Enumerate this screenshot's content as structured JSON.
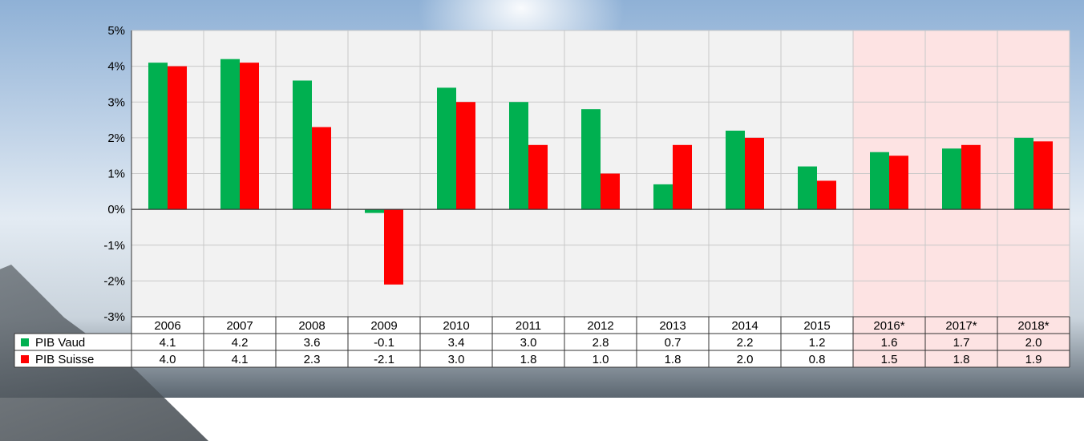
{
  "chart_data": {
    "type": "bar",
    "categories": [
      "2006",
      "2007",
      "2008",
      "2009",
      "2010",
      "2011",
      "2012",
      "2013",
      "2014",
      "2015",
      "2016*",
      "2017*",
      "2018*"
    ],
    "series": [
      {
        "name": "PIB Vaud",
        "color": "#00b050",
        "values": [
          4.1,
          4.2,
          3.6,
          -0.1,
          3.4,
          3.0,
          2.8,
          0.7,
          2.2,
          1.2,
          1.6,
          1.7,
          2.0
        ],
        "labels": [
          "4.1",
          "4.2",
          "3.6",
          "-0.1",
          "3.4",
          "3.0",
          "2.8",
          "0.7",
          "2.2",
          "1.2",
          "1.6",
          "1.7",
          "2.0"
        ]
      },
      {
        "name": "PIB Suisse",
        "color": "#ff0000",
        "values": [
          4.0,
          4.1,
          2.3,
          -2.1,
          3.0,
          1.8,
          1.0,
          1.8,
          2.0,
          0.8,
          1.5,
          1.8,
          1.9
        ],
        "labels": [
          "4.0",
          "4.1",
          "2.3",
          "-2.1",
          "3.0",
          "1.8",
          "1.0",
          "1.8",
          "2.0",
          "0.8",
          "1.5",
          "1.8",
          "1.9"
        ]
      }
    ],
    "forecast_categories": [
      "2016*",
      "2017*",
      "2018*"
    ],
    "ylim": [
      -3,
      5
    ],
    "yticks": [
      -3,
      -2,
      -1,
      0,
      1,
      2,
      3,
      4,
      5
    ],
    "ytick_labels": [
      "-3%",
      "-2%",
      "-1%",
      "0%",
      "1%",
      "2%",
      "3%",
      "4%",
      "5%"
    ],
    "grid": true,
    "legend": "data-table-left",
    "colors": {
      "plot_bg": "#f2f2f2",
      "forecast_bg": "#fde3e3",
      "grid": "#c8c8c8"
    }
  }
}
